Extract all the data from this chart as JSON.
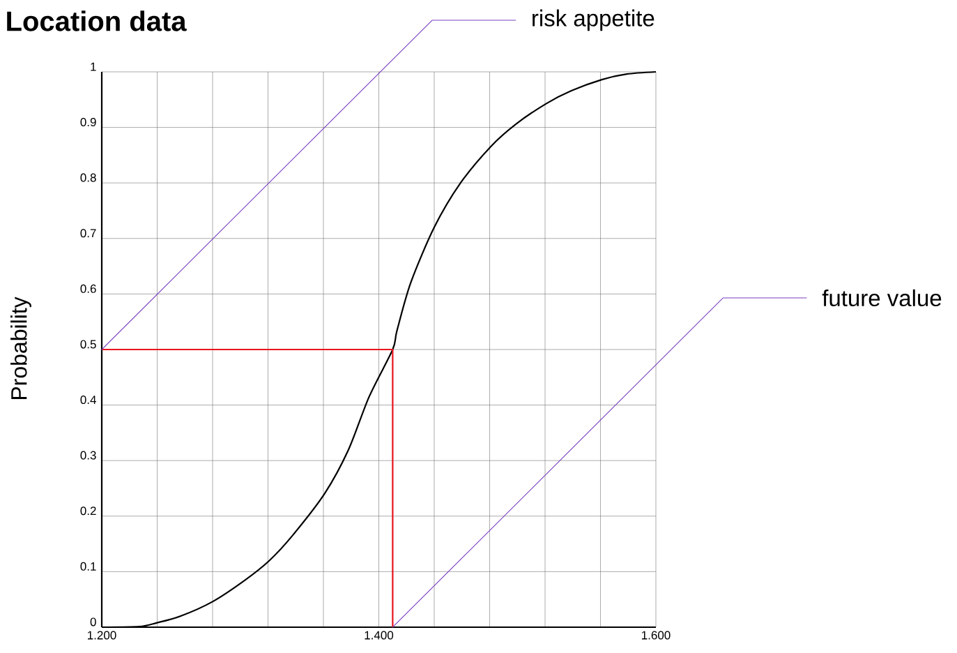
{
  "chart_data": {
    "type": "line",
    "title": "Location data",
    "ylabel": "Probability",
    "xlim": [
      1.2,
      1.6
    ],
    "ylim": [
      0,
      1
    ],
    "grid": true,
    "xticks": [
      {
        "value": 1.2,
        "label": "1.200"
      },
      {
        "value": 1.24,
        "label": null
      },
      {
        "value": 1.28,
        "label": null
      },
      {
        "value": 1.32,
        "label": null
      },
      {
        "value": 1.36,
        "label": null
      },
      {
        "value": 1.4,
        "label": "1.400"
      },
      {
        "value": 1.44,
        "label": null
      },
      {
        "value": 1.48,
        "label": null
      },
      {
        "value": 1.52,
        "label": null
      },
      {
        "value": 1.56,
        "label": null
      },
      {
        "value": 1.6,
        "label": "1.600"
      }
    ],
    "yticks": [
      0,
      0.1,
      0.2,
      0.3,
      0.4,
      0.5,
      0.6,
      0.7,
      0.8,
      0.9,
      1
    ],
    "series": [
      {
        "color": "#000000",
        "x": [
          1.2,
          1.227,
          1.24,
          1.257,
          1.28,
          1.303,
          1.321,
          1.338,
          1.361,
          1.378,
          1.393,
          1.41,
          1.413,
          1.423,
          1.44,
          1.459,
          1.481,
          1.499,
          1.521,
          1.539,
          1.561,
          1.579,
          1.6
        ],
        "values": [
          0,
          0.001,
          0.008,
          0.02,
          0.046,
          0.084,
          0.12,
          0.166,
          0.241,
          0.319,
          0.415,
          0.5,
          0.533,
          0.62,
          0.72,
          0.8,
          0.866,
          0.906,
          0.943,
          0.966,
          0.986,
          0.996,
          1.0
        ]
      },
      {
        "color": "#e8141c",
        "x": [
          1.2,
          1.41,
          1.41
        ],
        "values": [
          0.5,
          0.5,
          0
        ]
      }
    ],
    "annotations": [
      {
        "text": "risk appetite",
        "x": 1.2,
        "y": 0.5
      },
      {
        "text": "future value",
        "x": 1.41,
        "y": 0
      }
    ]
  }
}
